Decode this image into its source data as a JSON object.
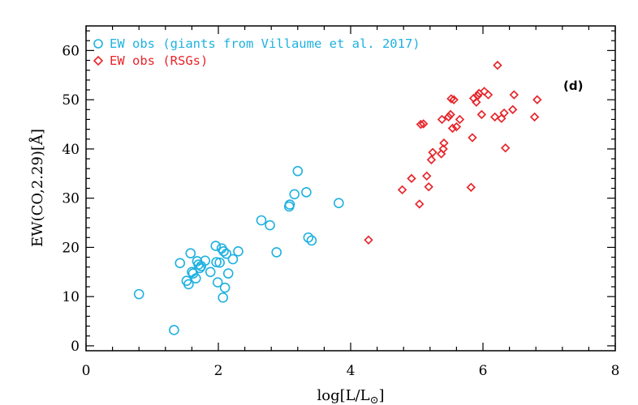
{
  "chart_data": {
    "type": "scatter",
    "xlabel_main": "log[L/L",
    "xlabel_sub_symbol": "⊙",
    "xlabel_close": "]",
    "ylabel": "EW(CO,2.29)[Å]",
    "xlim": [
      0,
      8
    ],
    "ylim": [
      -1,
      65
    ],
    "xticks": [
      0,
      2,
      4,
      6,
      8
    ],
    "yticks": [
      0,
      10,
      20,
      30,
      40,
      50,
      60
    ],
    "xtick_labels": [
      "0",
      "2",
      "4",
      "6",
      "8"
    ],
    "ytick_labels": [
      "0",
      "10",
      "20",
      "30",
      "40",
      "50",
      "60"
    ],
    "panel_label": "(d)",
    "legend_position": "top-left",
    "grid": false,
    "series": [
      {
        "name": "EW obs (giants from Villaume et al. 2017)",
        "marker": "circle",
        "color": "#1fb1e0",
        "x": [
          0.8,
          1.33,
          1.42,
          1.52,
          1.55,
          1.58,
          1.6,
          1.62,
          1.66,
          1.68,
          1.7,
          1.72,
          1.74,
          1.8,
          1.88,
          1.96,
          1.97,
          1.99,
          2.02,
          2.05,
          2.07,
          2.08,
          2.1,
          2.12,
          2.15,
          2.22,
          2.3,
          2.65,
          2.78,
          2.88,
          3.07,
          3.08,
          3.15,
          3.2,
          3.33,
          3.36,
          3.41,
          3.82
        ],
        "y": [
          10.5,
          3.2,
          16.8,
          13.2,
          12.5,
          18.8,
          15.0,
          14.7,
          13.7,
          17.2,
          16.5,
          15.8,
          16.2,
          17.3,
          15.0,
          20.3,
          17.0,
          12.9,
          16.9,
          19.8,
          9.8,
          19.2,
          11.8,
          18.7,
          14.7,
          17.6,
          19.2,
          25.5,
          24.5,
          19.0,
          28.3,
          28.7,
          30.8,
          35.5,
          31.2,
          22.0,
          21.4,
          29.0
        ]
      },
      {
        "name": "EW obs (RSGs)",
        "marker": "diamond",
        "color": "#e8252a",
        "x": [
          4.27,
          4.78,
          4.92,
          5.04,
          5.06,
          5.1,
          5.15,
          5.18,
          5.22,
          5.24,
          5.37,
          5.38,
          5.4,
          5.41,
          5.48,
          5.51,
          5.52,
          5.54,
          5.56,
          5.6,
          5.65,
          5.82,
          5.84,
          5.86,
          5.9,
          5.92,
          5.94,
          5.98,
          6.02,
          6.08,
          6.18,
          6.22,
          6.28,
          6.32,
          6.34,
          6.45,
          6.47,
          6.78,
          6.82
        ],
        "y": [
          21.5,
          31.7,
          34.0,
          28.8,
          45.0,
          45.1,
          34.5,
          32.3,
          37.8,
          39.3,
          39.0,
          46.0,
          40.0,
          41.2,
          46.5,
          47.0,
          50.2,
          44.2,
          50.0,
          44.5,
          46.0,
          32.2,
          42.3,
          50.3,
          49.5,
          50.8,
          51.3,
          47.0,
          51.7,
          51.0,
          46.5,
          57.0,
          46.2,
          47.3,
          40.2,
          48.0,
          51.0,
          46.5,
          50.0
        ]
      }
    ]
  }
}
